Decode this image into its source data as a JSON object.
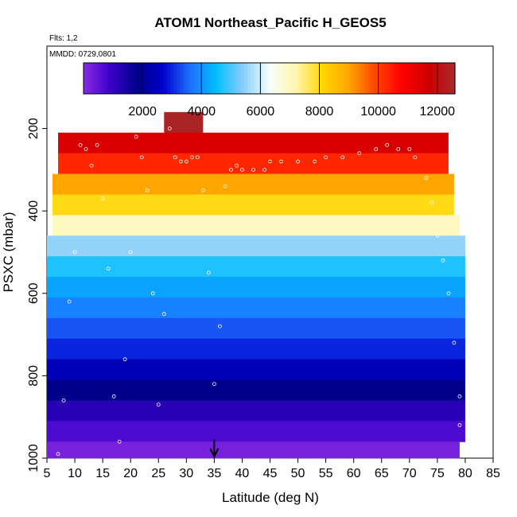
{
  "chart_data": {
    "type": "heatmap",
    "title": "ATOM1 Northeast_Pacific H_GEOS5",
    "annotations": [
      "Flts: 1,2",
      "MMDD: 0729,0801"
    ],
    "xlabel": "Latitude (deg N)",
    "ylabel": "PSXC (mbar)",
    "xlim": [
      5,
      85
    ],
    "ylim": [
      1000,
      0
    ],
    "x_ticks": [
      5,
      10,
      15,
      20,
      25,
      30,
      35,
      40,
      45,
      50,
      55,
      60,
      65,
      70,
      75,
      80,
      85
    ],
    "y_ticks": [
      200,
      400,
      600,
      800,
      1000
    ],
    "colorbar": {
      "range": [
        0,
        12600
      ],
      "ticks": [
        2000,
        4000,
        6000,
        8000,
        10000,
        12000
      ],
      "colors": [
        "#8a2be2",
        "#3b00cc",
        "#00008b",
        "#0000cd",
        "#1e6fff",
        "#00bfff",
        "#87cefa",
        "#f5fffa",
        "#fff5b0",
        "#ffd700",
        "#ffa500",
        "#ff4500",
        "#ff0000",
        "#cd0000",
        "#a52a2a"
      ]
    },
    "bands": [
      {
        "p_top": 160,
        "p_bot": 210,
        "lat_min": 26,
        "lat_max": 33,
        "value": 12500
      },
      {
        "p_top": 210,
        "p_bot": 260,
        "lat_min": 7,
        "lat_max": 77,
        "value": 11500
      },
      {
        "p_top": 260,
        "p_bot": 310,
        "lat_min": 7,
        "lat_max": 77,
        "value": 10300
      },
      {
        "p_top": 310,
        "p_bot": 360,
        "lat_min": 6,
        "lat_max": 78,
        "value": 9000
      },
      {
        "p_top": 360,
        "p_bot": 410,
        "lat_min": 6,
        "lat_max": 78,
        "value": 8000
      },
      {
        "p_top": 410,
        "p_bot": 460,
        "lat_min": 6,
        "lat_max": 79,
        "value": 7000
      },
      {
        "p_top": 460,
        "p_bot": 510,
        "lat_min": 5,
        "lat_max": 80,
        "value": 5500
      },
      {
        "p_top": 510,
        "p_bot": 560,
        "lat_min": 5,
        "lat_max": 80,
        "value": 4700
      },
      {
        "p_top": 560,
        "p_bot": 610,
        "lat_min": 5,
        "lat_max": 80,
        "value": 4200
      },
      {
        "p_top": 610,
        "p_bot": 660,
        "lat_min": 5,
        "lat_max": 80,
        "value": 3800
      },
      {
        "p_top": 660,
        "p_bot": 710,
        "lat_min": 5,
        "lat_max": 80,
        "value": 3400
      },
      {
        "p_top": 710,
        "p_bot": 760,
        "lat_min": 5,
        "lat_max": 80,
        "value": 3000
      },
      {
        "p_top": 760,
        "p_bot": 810,
        "lat_min": 5,
        "lat_max": 80,
        "value": 2400
      },
      {
        "p_top": 810,
        "p_bot": 860,
        "lat_min": 5,
        "lat_max": 80,
        "value": 1800
      },
      {
        "p_top": 860,
        "p_bot": 910,
        "lat_min": 5,
        "lat_max": 80,
        "value": 1200
      },
      {
        "p_top": 910,
        "p_bot": 960,
        "lat_min": 5,
        "lat_max": 80,
        "value": 700
      },
      {
        "p_top": 960,
        "p_bot": 1000,
        "lat_min": 5,
        "lat_max": 79,
        "value": 200
      }
    ],
    "flight_track": [
      [
        7,
        990
      ],
      [
        8,
        860
      ],
      [
        9,
        620
      ],
      [
        10,
        500
      ],
      [
        11,
        240
      ],
      [
        12,
        250
      ],
      [
        13,
        290
      ],
      [
        14,
        240
      ],
      [
        15,
        370
      ],
      [
        16,
        540
      ],
      [
        17,
        850
      ],
      [
        18,
        960
      ],
      [
        19,
        760
      ],
      [
        20,
        500
      ],
      [
        21,
        220
      ],
      [
        22,
        270
      ],
      [
        23,
        350
      ],
      [
        24,
        600
      ],
      [
        25,
        870
      ],
      [
        26,
        650
      ],
      [
        27,
        200
      ],
      [
        28,
        270
      ],
      [
        29,
        280
      ],
      [
        30,
        280
      ],
      [
        31,
        270
      ],
      [
        32,
        270
      ],
      [
        33,
        350
      ],
      [
        34,
        550
      ],
      [
        35,
        820
      ],
      [
        36,
        680
      ],
      [
        37,
        340
      ],
      [
        38,
        300
      ],
      [
        39,
        290
      ],
      [
        40,
        300
      ],
      [
        42,
        300
      ],
      [
        44,
        300
      ],
      [
        45,
        280
      ],
      [
        47,
        280
      ],
      [
        50,
        280
      ],
      [
        53,
        280
      ],
      [
        55,
        270
      ],
      [
        58,
        270
      ],
      [
        61,
        260
      ],
      [
        64,
        250
      ],
      [
        66,
        240
      ],
      [
        68,
        250
      ],
      [
        70,
        250
      ],
      [
        71,
        270
      ],
      [
        73,
        320
      ],
      [
        74,
        380
      ],
      [
        75,
        460
      ],
      [
        76,
        520
      ],
      [
        77,
        600
      ],
      [
        78,
        720
      ],
      [
        79,
        850
      ],
      [
        79,
        920
      ]
    ],
    "marker_latitude": 35
  }
}
